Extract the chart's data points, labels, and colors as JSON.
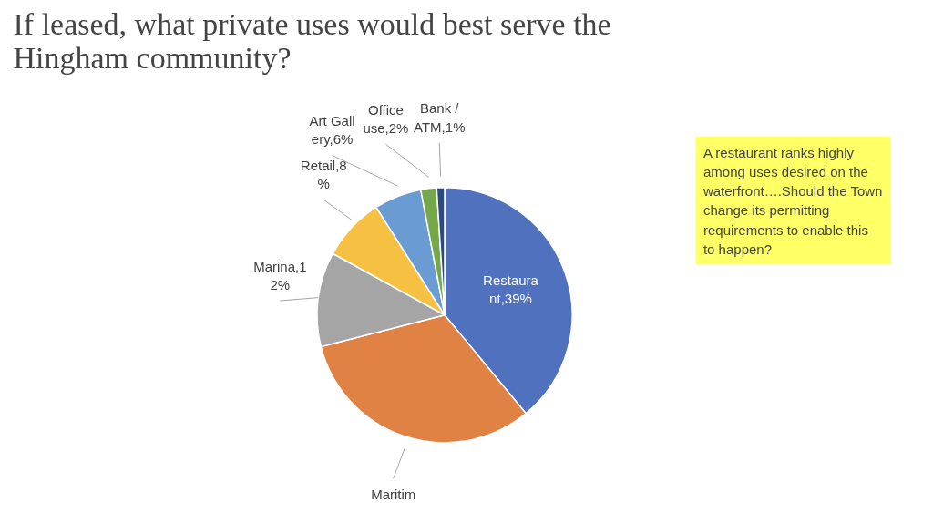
{
  "chart_data": {
    "type": "pie",
    "title": "If leased, what private uses would best serve the Hingham community?",
    "categories": [
      "Restaurant,39%",
      "Maritim",
      "Marina,12%",
      "Retail,8%",
      "Art Gallery,6%",
      "Office use,2%",
      "Bank / ATM,1%"
    ],
    "values": [
      39,
      32,
      12,
      8,
      6,
      2,
      1
    ],
    "colors": [
      "#4f71be",
      "#df8244",
      "#a5a5a5",
      "#f6c143",
      "#6a9bd3",
      "#74a84b",
      "#2c4a80"
    ],
    "annotations": [
      "A restaurant ranks highly among uses desired on the waterfront….Should the Town change its permitting requirements to enable this to happen?"
    ]
  }
}
